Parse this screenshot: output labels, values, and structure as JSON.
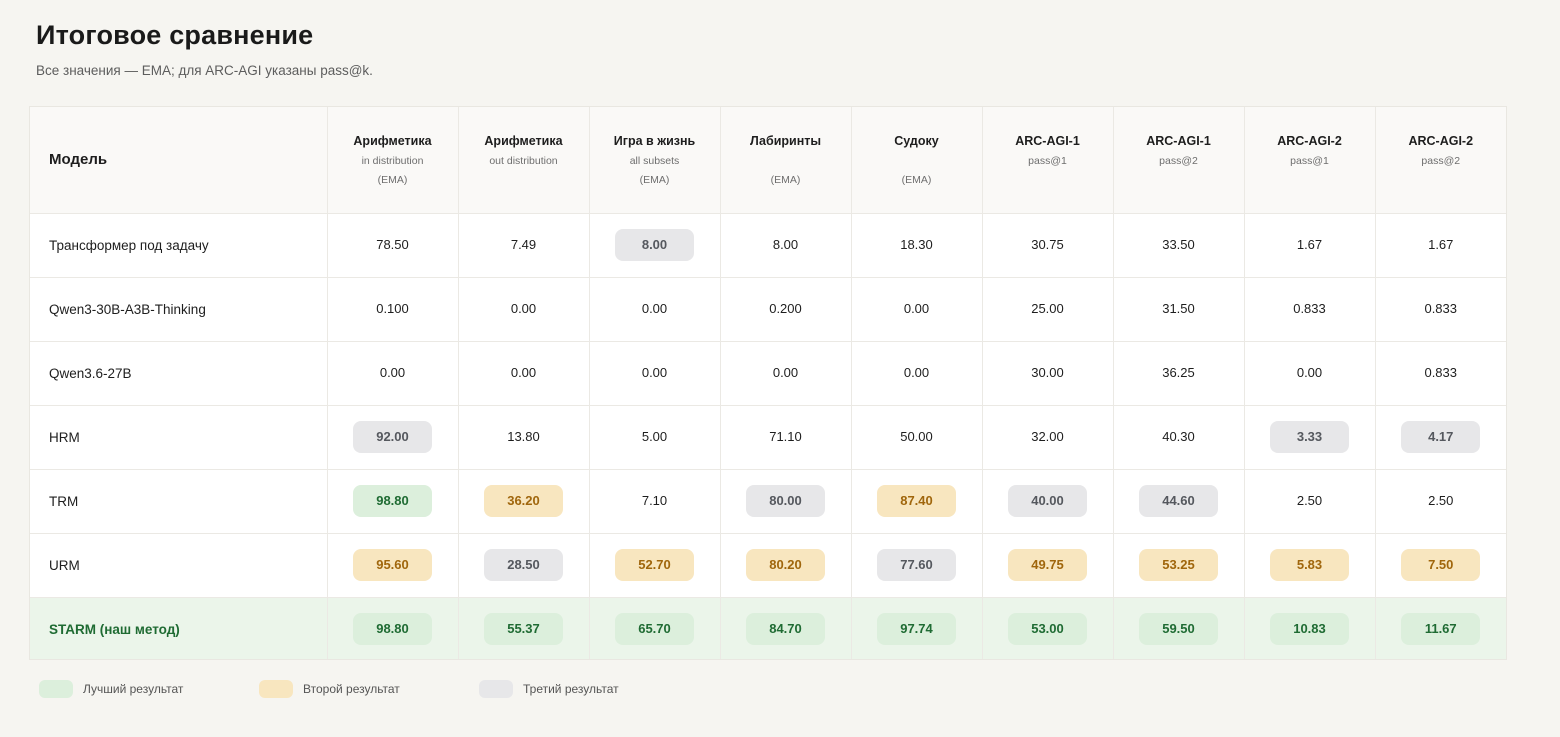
{
  "header": {
    "title": "Итоговое сравнение",
    "subtitle": "Все значения — EMA; для ARC-AGI указаны pass@k."
  },
  "colors": {
    "best": "#dcefdc",
    "second": "#f8e6bf",
    "third": "#e7e7e9",
    "ours_row": "#ebf5ea"
  },
  "chart_data": {
    "type": "table",
    "model_header": "Модель",
    "columns": [
      {
        "title": "Арифметика",
        "sub1": "in distribution",
        "sub2": "(EMA)"
      },
      {
        "title": "Арифметика",
        "sub1": "out distribution",
        "sub2": ""
      },
      {
        "title": "Игра в жизнь",
        "sub1": "all subsets",
        "sub2": "(EMA)"
      },
      {
        "title": "Лабиринты",
        "sub1": "",
        "sub2": "(EMA)"
      },
      {
        "title": "Судоку",
        "sub1": "",
        "sub2": "(EMA)"
      },
      {
        "title": "ARC-AGI-1",
        "sub1": "pass@1",
        "sub2": ""
      },
      {
        "title": "ARC-AGI-1",
        "sub1": "pass@2",
        "sub2": ""
      },
      {
        "title": "ARC-AGI-2",
        "sub1": "pass@1",
        "sub2": ""
      },
      {
        "title": "ARC-AGI-2",
        "sub1": "pass@2",
        "sub2": ""
      }
    ],
    "rows": [
      {
        "model": "Трансформер под задачу",
        "ours": false,
        "values": [
          "78.50",
          "7.49",
          "8.00",
          "8.00",
          "18.30",
          "30.75",
          "33.50",
          "1.67",
          "1.67"
        ],
        "ranks": [
          0,
          0,
          3,
          0,
          0,
          0,
          0,
          0,
          0
        ]
      },
      {
        "model": "Qwen3-30B-A3B-Thinking",
        "ours": false,
        "values": [
          "0.100",
          "0.00",
          "0.00",
          "0.200",
          "0.00",
          "25.00",
          "31.50",
          "0.833",
          "0.833"
        ],
        "ranks": [
          0,
          0,
          0,
          0,
          0,
          0,
          0,
          0,
          0
        ]
      },
      {
        "model": "Qwen3.6-27B",
        "ours": false,
        "values": [
          "0.00",
          "0.00",
          "0.00",
          "0.00",
          "0.00",
          "30.00",
          "36.25",
          "0.00",
          "0.833"
        ],
        "ranks": [
          0,
          0,
          0,
          0,
          0,
          0,
          0,
          0,
          0
        ]
      },
      {
        "model": "HRM",
        "ours": false,
        "values": [
          "92.00",
          "13.80",
          "5.00",
          "71.10",
          "50.00",
          "32.00",
          "40.30",
          "3.33",
          "4.17"
        ],
        "ranks": [
          3,
          0,
          0,
          0,
          0,
          0,
          0,
          3,
          3
        ]
      },
      {
        "model": "TRM",
        "ours": false,
        "values": [
          "98.80",
          "36.20",
          "7.10",
          "80.00",
          "87.40",
          "40.00",
          "44.60",
          "2.50",
          "2.50"
        ],
        "ranks": [
          1,
          2,
          0,
          3,
          2,
          3,
          3,
          0,
          0
        ]
      },
      {
        "model": "URM",
        "ours": false,
        "values": [
          "95.60",
          "28.50",
          "52.70",
          "80.20",
          "77.60",
          "49.75",
          "53.25",
          "5.83",
          "7.50"
        ],
        "ranks": [
          2,
          3,
          2,
          2,
          3,
          2,
          2,
          2,
          2
        ]
      },
      {
        "model": "STARM (наш метод)",
        "ours": true,
        "values": [
          "98.80",
          "55.37",
          "65.70",
          "84.70",
          "97.74",
          "53.00",
          "59.50",
          "10.83",
          "11.67"
        ],
        "ranks": [
          1,
          1,
          1,
          1,
          1,
          1,
          1,
          1,
          1
        ]
      }
    ]
  },
  "legend": [
    {
      "rank": 1,
      "label": "Лучший результат"
    },
    {
      "rank": 2,
      "label": "Второй результат"
    },
    {
      "rank": 3,
      "label": "Третий результат"
    }
  ]
}
